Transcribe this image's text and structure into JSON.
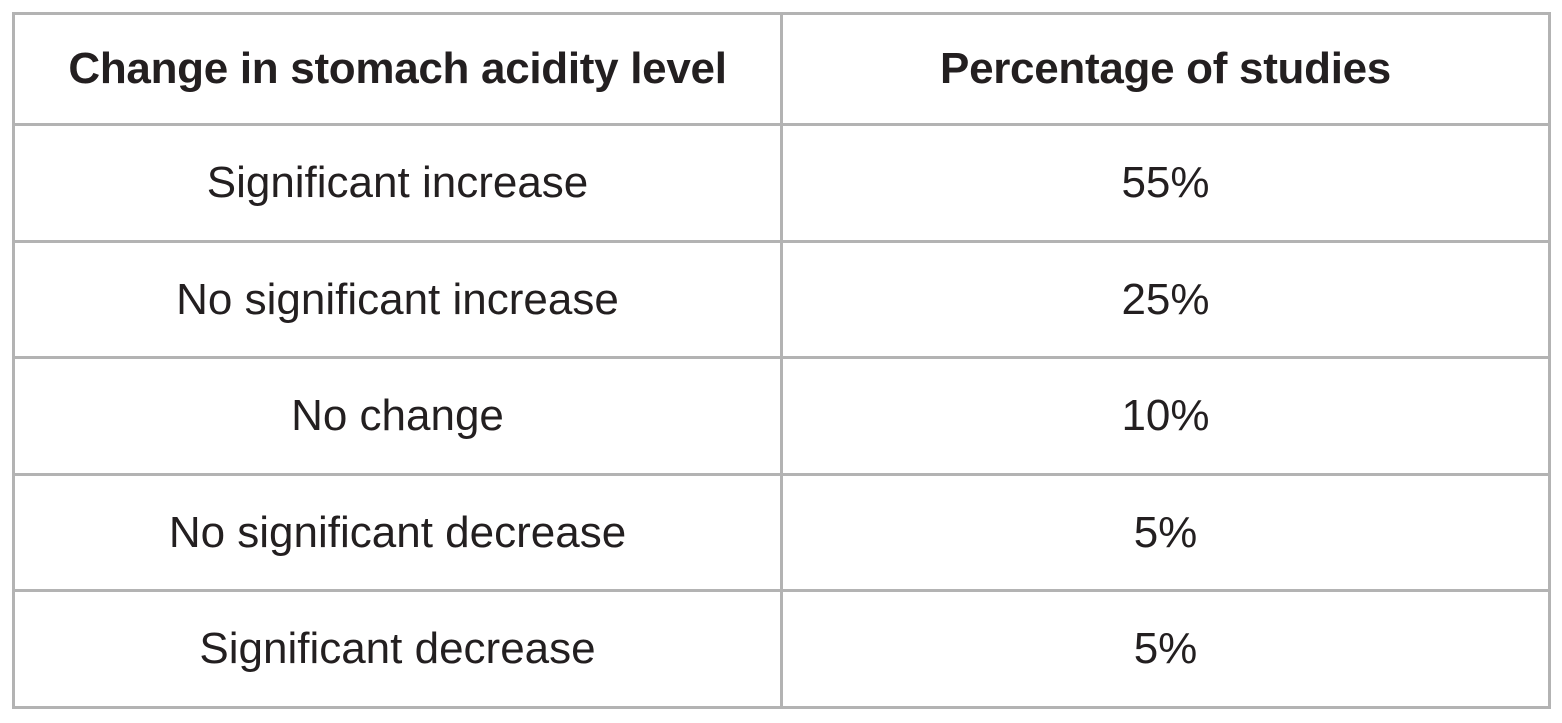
{
  "table": {
    "headers": [
      "Change in stomach acidity level",
      "Percentage of studies"
    ],
    "rows": [
      [
        "Significant increase",
        "55%"
      ],
      [
        "No significant increase",
        "25%"
      ],
      [
        "No change",
        "10%"
      ],
      [
        "No significant decrease",
        "5%"
      ],
      [
        "Significant decrease",
        "5%"
      ]
    ]
  }
}
